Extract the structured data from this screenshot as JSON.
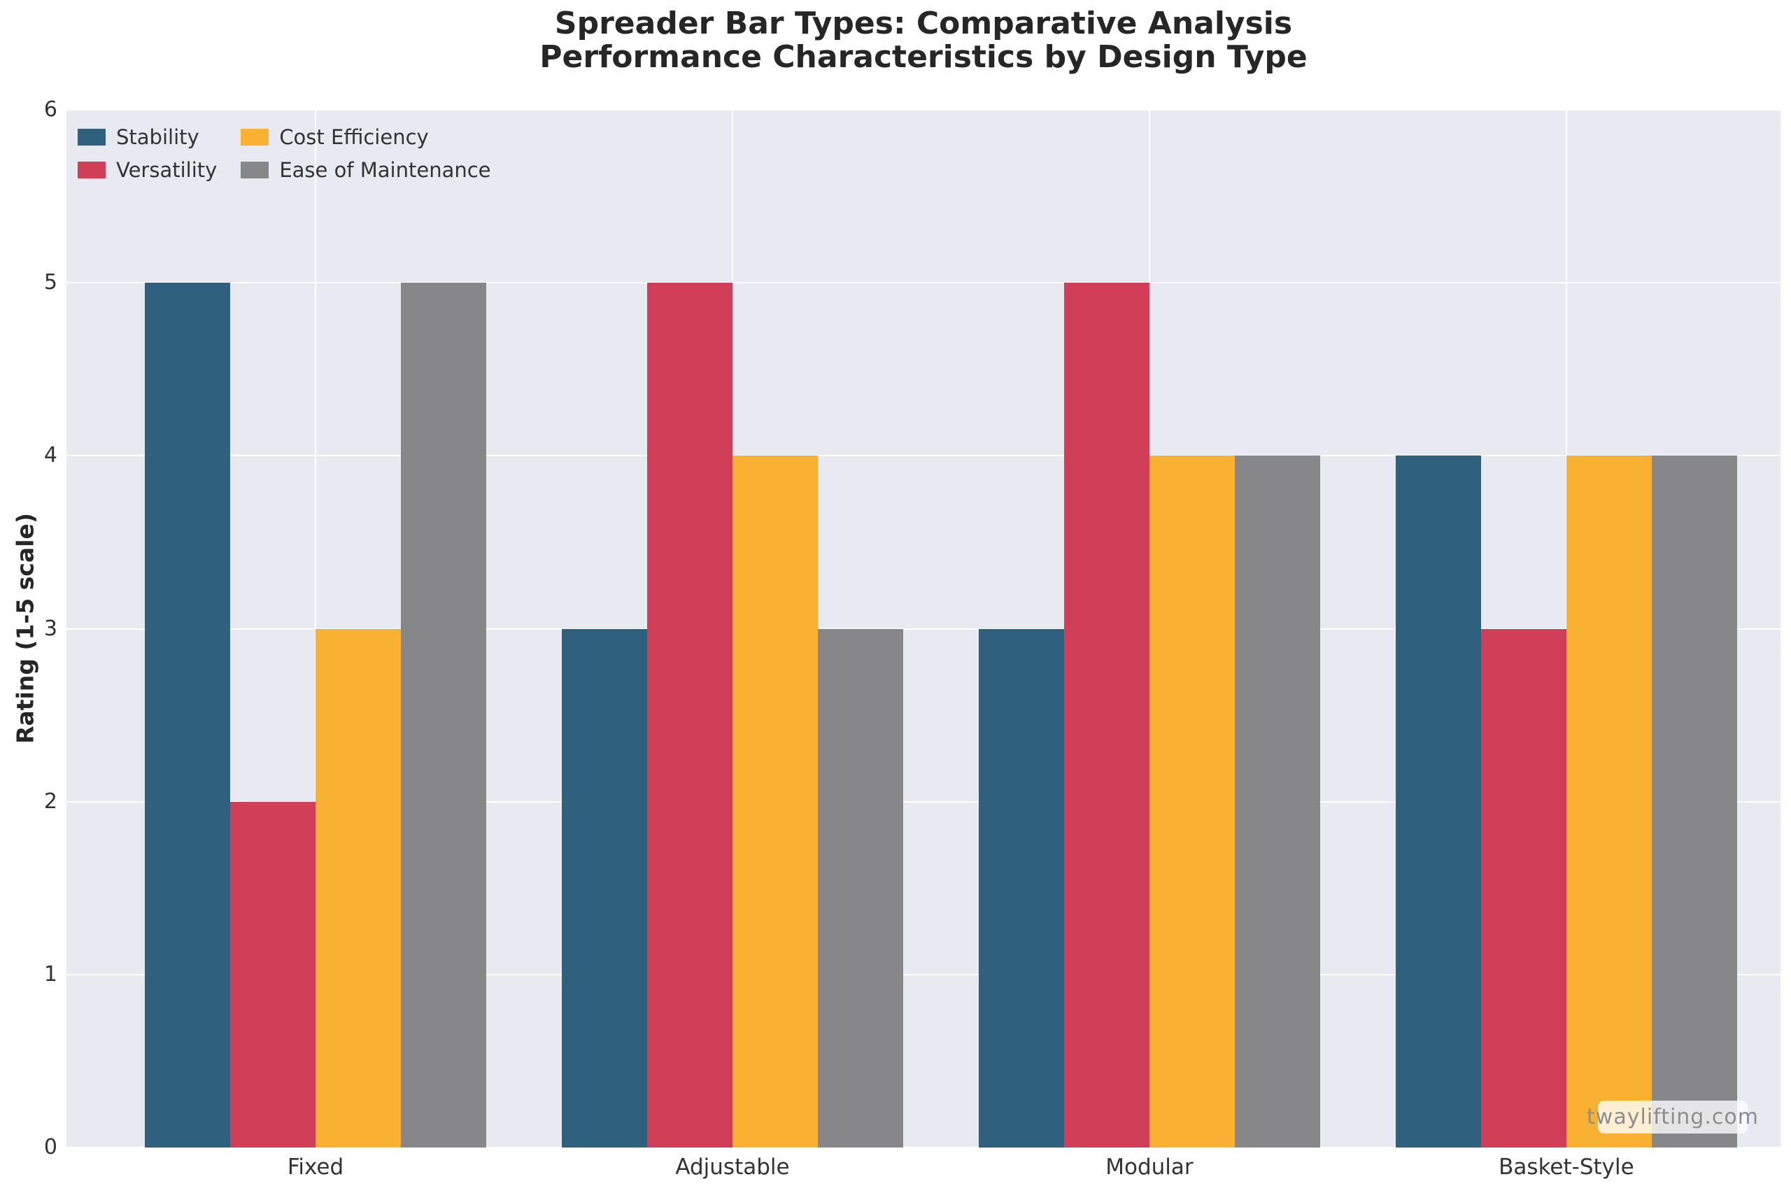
{
  "title": {
    "line1": "Spreader Bar Types: Comparative Analysis",
    "line2": "Performance Characteristics by Design Type"
  },
  "watermark": "twaylifting.com",
  "colors": {
    "plot_background": "#E9E9F2",
    "grid": "#FFFFFF",
    "title_text": "#262626",
    "tick_text": "#333333",
    "watermark_text": "#8D8D90"
  },
  "chart_data": {
    "type": "bar",
    "categories": [
      "Fixed",
      "Adjustable",
      "Modular",
      "Basket-Style"
    ],
    "series": [
      {
        "name": "Stability",
        "color": "#2F607E",
        "values": [
          5,
          3,
          3,
          4
        ]
      },
      {
        "name": "Versatility",
        "color": "#D03E57",
        "values": [
          2,
          5,
          5,
          3
        ]
      },
      {
        "name": "Cost Efficiency",
        "color": "#F8B133",
        "values": [
          3,
          4,
          4,
          4
        ]
      },
      {
        "name": "Ease of Maintenance",
        "color": "#87878A",
        "values": [
          5,
          3,
          4,
          4
        ]
      }
    ],
    "title": "Spreader Bar Types: Comparative Analysis — Performance Characteristics by Design Type",
    "xlabel": "",
    "ylabel": "Rating (1-5 scale)",
    "ylim": [
      0,
      6
    ],
    "yticks": [
      0,
      1,
      2,
      3,
      4,
      5,
      6
    ],
    "grid": true,
    "legend_position": "upper-left",
    "legend_columns": 2
  }
}
